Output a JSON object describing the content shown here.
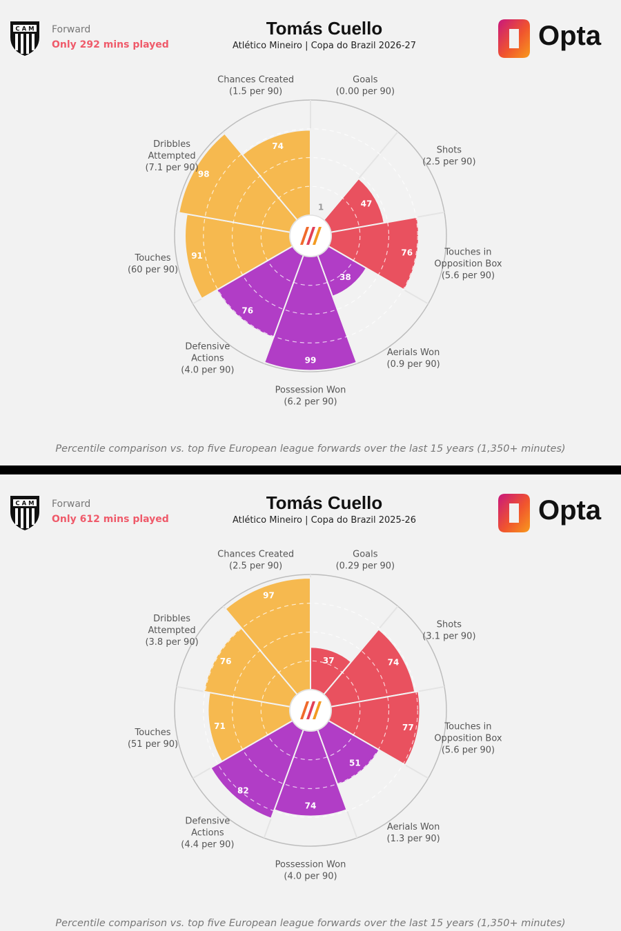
{
  "panels": [
    {
      "role": "Forward",
      "minutes": "Only 292 mins played",
      "player": "Tomás Cuello",
      "subtitle": "Atlético Mineiro | Copa do Brazil 2026-27",
      "logo": "Opta",
      "crest_icon": "club-crest-icon",
      "footnote": "Percentile comparison vs. top five European league forwards over the last 15 years (1,350+ minutes)",
      "chart_data": {
        "type": "polar-bar",
        "scale": [
          0,
          100
        ],
        "categories": [
          {
            "name": "Goals",
            "rate": "(0.00 per 90)",
            "value": 1,
            "group": "attack"
          },
          {
            "name": "Shots",
            "rate": "(2.5 per 90)",
            "value": 47,
            "group": "attack"
          },
          {
            "name": "Touches in Opposition Box",
            "rate": "(5.6 per 90)",
            "value": 76,
            "group": "attack"
          },
          {
            "name": "Aerials Won",
            "rate": "(0.9 per 90)",
            "value": 38,
            "group": "defence"
          },
          {
            "name": "Possession Won",
            "rate": "(6.2 per 90)",
            "value": 99,
            "group": "defence"
          },
          {
            "name": "Defensive Actions",
            "rate": "(4.0 per 90)",
            "value": 76,
            "group": "defence"
          },
          {
            "name": "Touches",
            "rate": "(60 per 90)",
            "value": 91,
            "group": "possession"
          },
          {
            "name": "Dribbles Attempted",
            "rate": "(7.1 per 90)",
            "value": 98,
            "group": "possession"
          },
          {
            "name": "Chances Created",
            "rate": "(1.5 per 90)",
            "value": 74,
            "group": "possession"
          }
        ]
      }
    },
    {
      "role": "Forward",
      "minutes": "Only 612 mins played",
      "player": "Tomás Cuello",
      "subtitle": "Atlético Mineiro | Copa do Brazil 2025-26",
      "logo": "Opta",
      "crest_icon": "club-crest-icon",
      "footnote": "Percentile comparison vs. top five European league forwards over the last 15 years (1,350+ minutes)",
      "chart_data": {
        "type": "polar-bar",
        "scale": [
          0,
          100
        ],
        "categories": [
          {
            "name": "Goals",
            "rate": "(0.29 per 90)",
            "value": 37,
            "group": "attack"
          },
          {
            "name": "Shots",
            "rate": "(3.1 per 90)",
            "value": 74,
            "group": "attack"
          },
          {
            "name": "Touches in Opposition Box",
            "rate": "(5.6 per 90)",
            "value": 77,
            "group": "attack"
          },
          {
            "name": "Aerials Won",
            "rate": "(1.3 per 90)",
            "value": 51,
            "group": "defence"
          },
          {
            "name": "Possession Won",
            "rate": "(4.0 per 90)",
            "value": 74,
            "group": "defence"
          },
          {
            "name": "Defensive Actions",
            "rate": "(4.4 per 90)",
            "value": 82,
            "group": "defence"
          },
          {
            "name": "Touches",
            "rate": "(51 per 90)",
            "value": 71,
            "group": "possession"
          },
          {
            "name": "Dribbles Attempted",
            "rate": "(3.8 per 90)",
            "value": 76,
            "group": "possession"
          },
          {
            "name": "Chances Created",
            "rate": "(2.5 per 90)",
            "value": 97,
            "group": "possession"
          }
        ]
      }
    }
  ],
  "colors": {
    "attack": "#e9515f",
    "defence": "#b13dc6",
    "possession": "#f6b94f",
    "background": "#f2f2f2",
    "minutes_text": "#ef5a6a"
  }
}
